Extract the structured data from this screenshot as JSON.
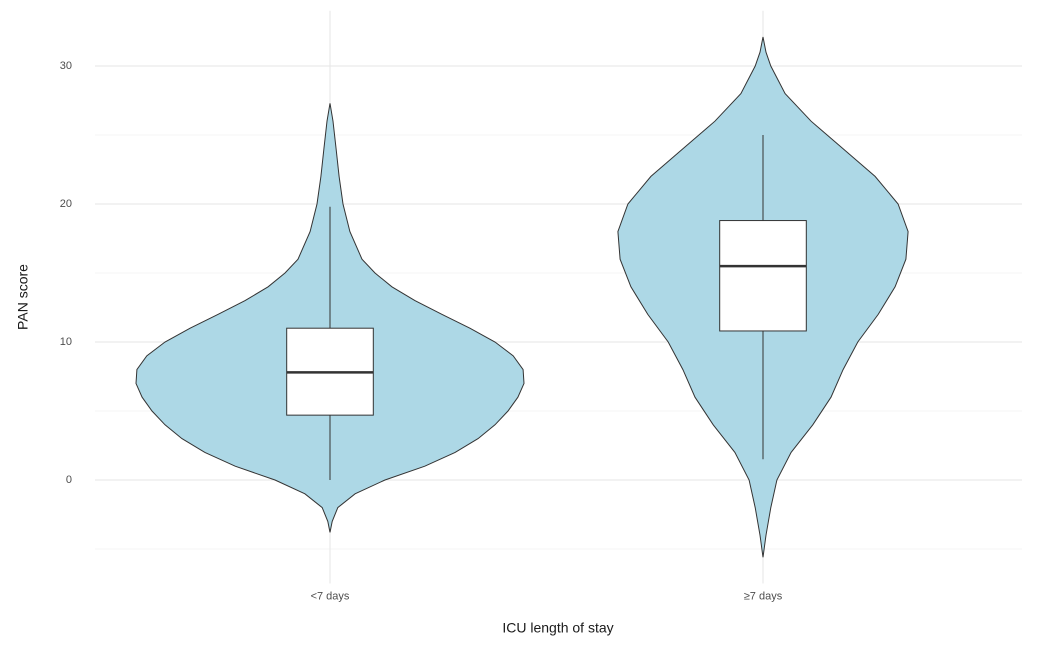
{
  "chart_data": {
    "type": "violin",
    "x_label": "ICU length of stay",
    "y_label": "PAN score",
    "categories": [
      "<7 days",
      "≥7 days"
    ],
    "ylim": [
      -7.5,
      34
    ],
    "yticks": [
      0,
      10,
      20,
      30
    ],
    "minor_yticks": [
      -5,
      5,
      15,
      25
    ],
    "grid": true,
    "color": "#add8e6",
    "violins": [
      {
        "y": [
          -3.8,
          -3,
          -2,
          -1,
          0,
          1,
          2,
          3,
          4,
          5,
          6,
          7,
          8,
          9,
          10,
          11,
          12,
          13,
          14,
          15,
          16,
          18,
          20,
          22,
          24,
          26,
          27.3
        ],
        "width": [
          0,
          0.005,
          0.018,
          0.058,
          0.127,
          0.219,
          0.289,
          0.342,
          0.381,
          0.411,
          0.434,
          0.448,
          0.446,
          0.423,
          0.381,
          0.323,
          0.259,
          0.196,
          0.143,
          0.104,
          0.074,
          0.046,
          0.03,
          0.021,
          0.014,
          0.007,
          0
        ]
      },
      {
        "y": [
          -5.6,
          -4,
          -2,
          0,
          2,
          4,
          6,
          8,
          10,
          12,
          14,
          16,
          18,
          20,
          22,
          24,
          26,
          28,
          30,
          31,
          32.1
        ],
        "width": [
          0,
          0.007,
          0.018,
          0.032,
          0.065,
          0.115,
          0.157,
          0.185,
          0.219,
          0.266,
          0.305,
          0.33,
          0.335,
          0.312,
          0.259,
          0.185,
          0.111,
          0.051,
          0.018,
          0.007,
          0
        ]
      }
    ],
    "boxes": [
      {
        "min": 0,
        "q1": 4.7,
        "median": 7.8,
        "q3": 11,
        "max": 19.8
      },
      {
        "min": 1.5,
        "q1": 10.8,
        "median": 15.5,
        "q3": 18.8,
        "max": 25
      }
    ]
  }
}
